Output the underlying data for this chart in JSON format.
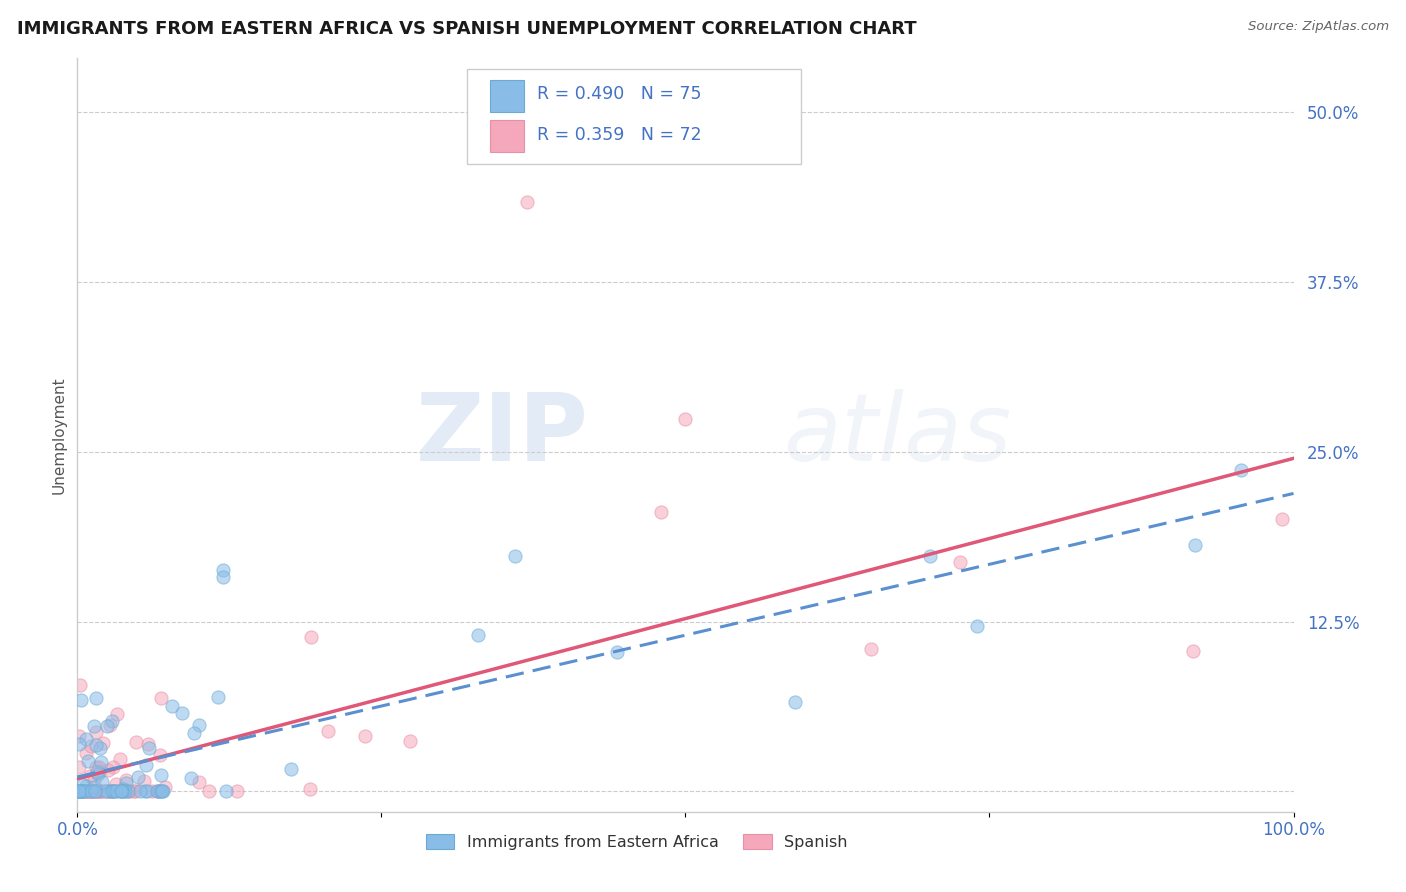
{
  "title": "IMMIGRANTS FROM EASTERN AFRICA VS SPANISH UNEMPLOYMENT CORRELATION CHART",
  "source": "Source: ZipAtlas.com",
  "ylabel": "Unemployment",
  "xlim": [
    0.0,
    1.0
  ],
  "ylim": [
    -0.015,
    0.54
  ],
  "legend_blue_label": "Immigrants from Eastern Africa",
  "legend_pink_label": "Spanish",
  "R_blue": "R = 0.490",
  "N_blue": "N = 75",
  "R_pink": "R = 0.359",
  "N_pink": "N = 72",
  "watermark_zip": "ZIP",
  "watermark_atlas": "atlas",
  "blue_scatter_color": "#89bde8",
  "pink_scatter_color": "#f5a8bb",
  "blue_edge_color": "#6aaad4",
  "pink_edge_color": "#e890a8",
  "line_blue_color": "#5a8fd0",
  "line_pink_color": "#e05878",
  "title_color": "#1a1a1a",
  "axis_label_color": "#4472c4",
  "grid_color": "#cccccc",
  "background_color": "#ffffff",
  "legend_box_color": "#f0f0f0",
  "legend_border_color": "#cccccc"
}
